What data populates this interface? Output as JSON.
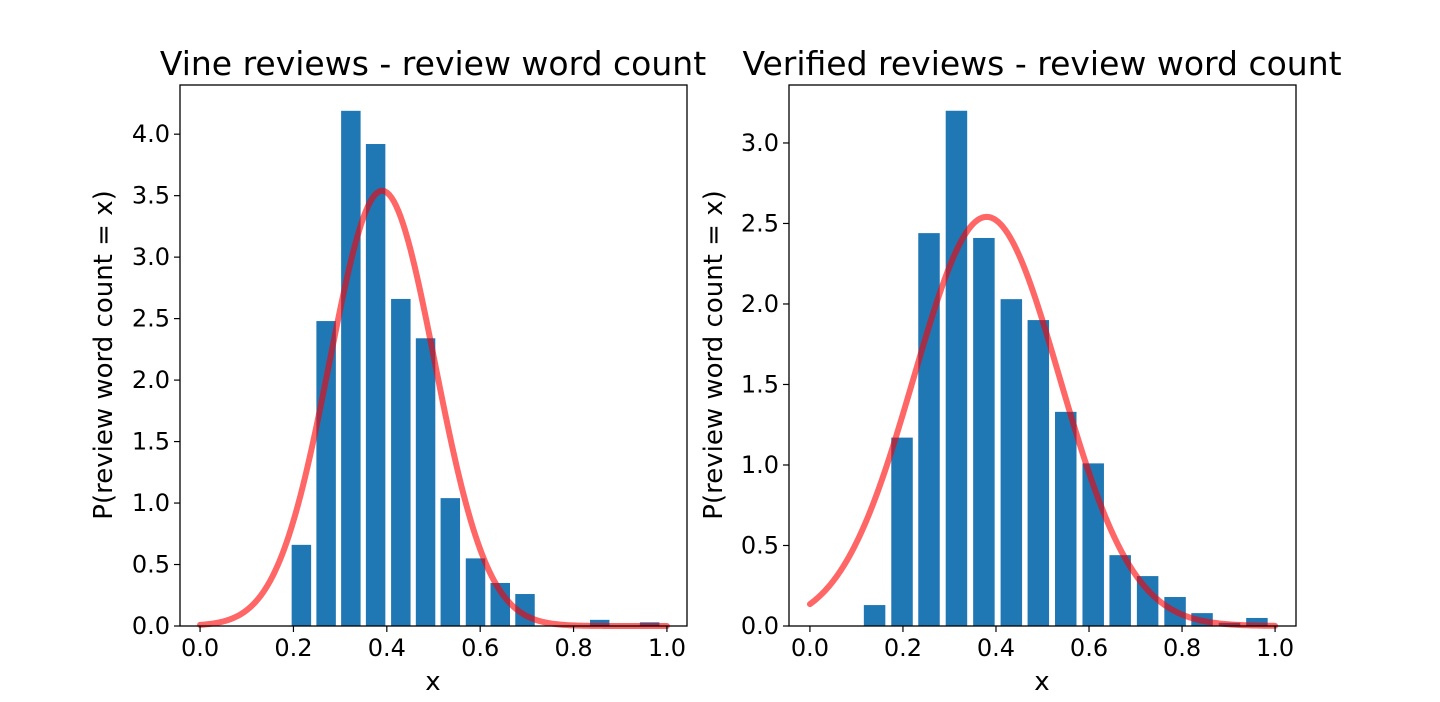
{
  "chart_data": [
    {
      "type": "bar",
      "title": "Vine reviews - review word count",
      "xlabel": "x",
      "ylabel": "P(review word count = x)",
      "xlim": [
        -0.043,
        1.043
      ],
      "ylim": [
        0,
        4.4
      ],
      "xticks": [
        0.0,
        0.2,
        0.4,
        0.6,
        0.8,
        1.0
      ],
      "xtick_labels": [
        "0.0",
        "0.2",
        "0.4",
        "0.6",
        "0.8",
        "1.0"
      ],
      "yticks": [
        0.0,
        0.5,
        1.0,
        1.5,
        2.0,
        2.5,
        3.0,
        3.5,
        4.0
      ],
      "ytick_labels": [
        "0.0",
        "0.5",
        "1.0",
        "1.5",
        "2.0",
        "2.5",
        "3.0",
        "3.5",
        "4.0"
      ],
      "grid": false,
      "bar_color": "#1f77b4",
      "bar_width": 0.0417,
      "bars": {
        "x": [
          0.217,
          0.27,
          0.323,
          0.376,
          0.43,
          0.483,
          0.536,
          0.59,
          0.643,
          0.696,
          0.75,
          0.803,
          0.856,
          0.909,
          0.963
        ],
        "values": [
          0.66,
          2.48,
          4.19,
          3.92,
          2.66,
          2.34,
          1.04,
          0.55,
          0.35,
          0.26,
          0.0,
          0.0,
          0.05,
          0.0,
          0.03
        ]
      },
      "fit_curve": {
        "kind": "normal_pdf",
        "color": "#ff0000",
        "alpha": 0.6,
        "mean": 0.39,
        "std": 0.1127,
        "x_range": [
          0.0,
          1.0
        ]
      }
    },
    {
      "type": "bar",
      "title": "Verified reviews - review word count",
      "xlabel": "x",
      "ylabel": "P(review word count = x)",
      "xlim": [
        -0.045,
        1.045
      ],
      "ylim": [
        0,
        3.36
      ],
      "xticks": [
        0.0,
        0.2,
        0.4,
        0.6,
        0.8,
        1.0
      ],
      "xtick_labels": [
        "0.0",
        "0.2",
        "0.4",
        "0.6",
        "0.8",
        "1.0"
      ],
      "yticks": [
        0.0,
        0.5,
        1.0,
        1.5,
        2.0,
        2.5,
        3.0
      ],
      "ytick_labels": [
        "0.0",
        "0.5",
        "1.0",
        "1.5",
        "2.0",
        "2.5",
        "3.0"
      ],
      "grid": false,
      "bar_color": "#1f77b4",
      "bar_width": 0.0462,
      "bars": {
        "x": [
          0.139,
          0.198,
          0.256,
          0.315,
          0.374,
          0.433,
          0.491,
          0.55,
          0.609,
          0.667,
          0.726,
          0.785,
          0.843,
          0.902,
          0.961
        ],
        "values": [
          0.13,
          1.17,
          2.44,
          3.2,
          2.41,
          2.03,
          1.9,
          1.33,
          1.01,
          0.44,
          0.31,
          0.18,
          0.08,
          0.02,
          0.05
        ]
      },
      "fit_curve": {
        "kind": "normal_pdf",
        "color": "#ff0000",
        "alpha": 0.6,
        "mean": 0.38,
        "std": 0.157,
        "x_range": [
          0.0,
          1.0
        ]
      }
    }
  ]
}
